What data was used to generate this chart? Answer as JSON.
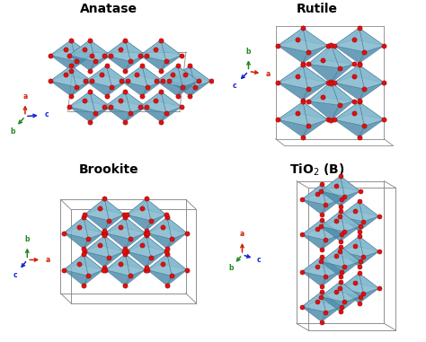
{
  "title_anatase": "Anatase",
  "title_rutile": "Rutile",
  "title_brookite": "Brookite",
  "title_tio2b": "TiO$_2$ (B)",
  "bg_color": "#ffffff",
  "oct_color": "#7db5cc",
  "oct_light": "#b8d8e8",
  "oct_dark": "#4a8aaa",
  "oct_edge": "#3a6f8a",
  "oct_alpha": 0.82,
  "atom_color": "#dd1111",
  "atom_edge": "#aa0000",
  "box_color": "#888888",
  "axis_a": "#cc2200",
  "axis_b": "#228822",
  "axis_c": "#1122cc",
  "title_fontsize": 10,
  "title_fontweight": "bold"
}
